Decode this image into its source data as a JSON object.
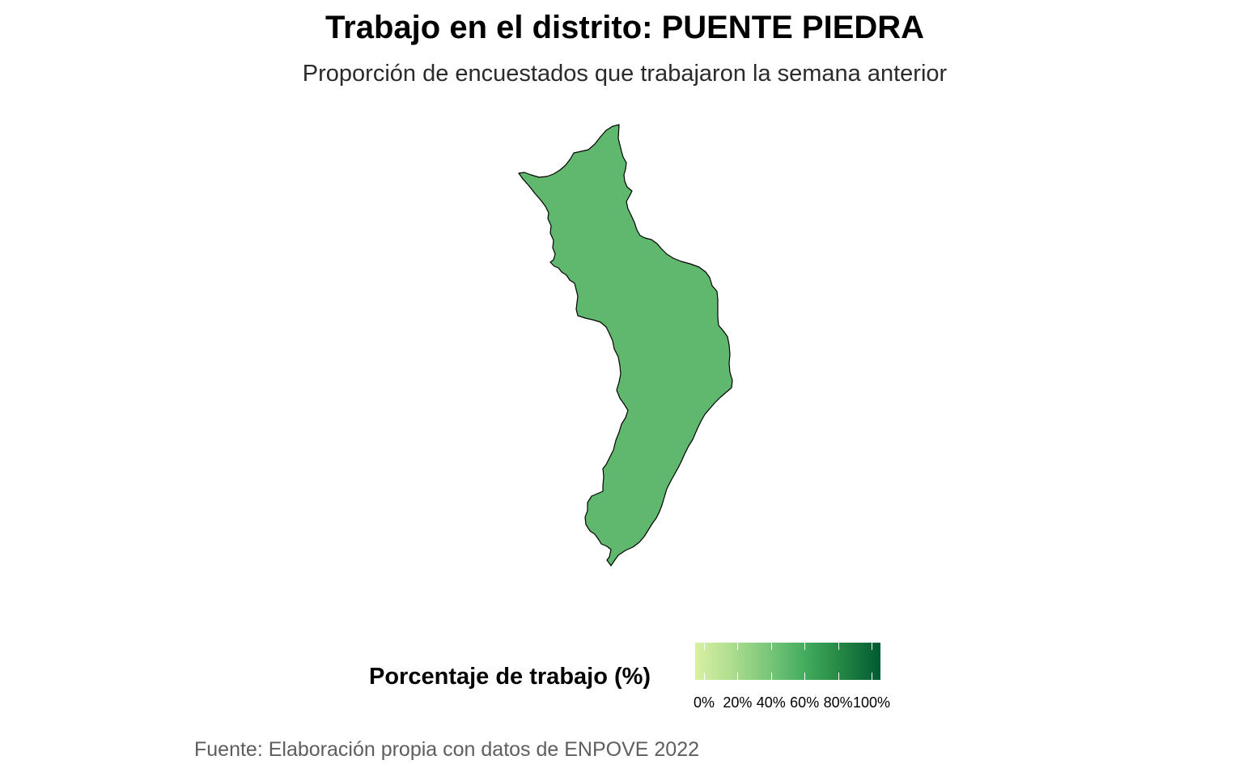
{
  "header": {
    "title": "Trabajo en el distrito: PUENTE PIEDRA",
    "subtitle": "Proporción de encuestados que trabajaron la semana anterior"
  },
  "map": {
    "region_name": "PUENTE PIEDRA",
    "fill_color": "#5fb86d",
    "border_color": "#000000"
  },
  "legend": {
    "title": "Porcentaje de trabajo (%)",
    "scale_colors": [
      "#d9f0a3",
      "#addd8e",
      "#78c679",
      "#41ab5d",
      "#238443",
      "#005a32"
    ],
    "ticks": [
      "0%",
      "20%",
      "40%",
      "60%",
      "80%",
      "100%"
    ]
  },
  "caption": "Fuente: Elaboración propia con datos de ENPOVE 2022"
}
